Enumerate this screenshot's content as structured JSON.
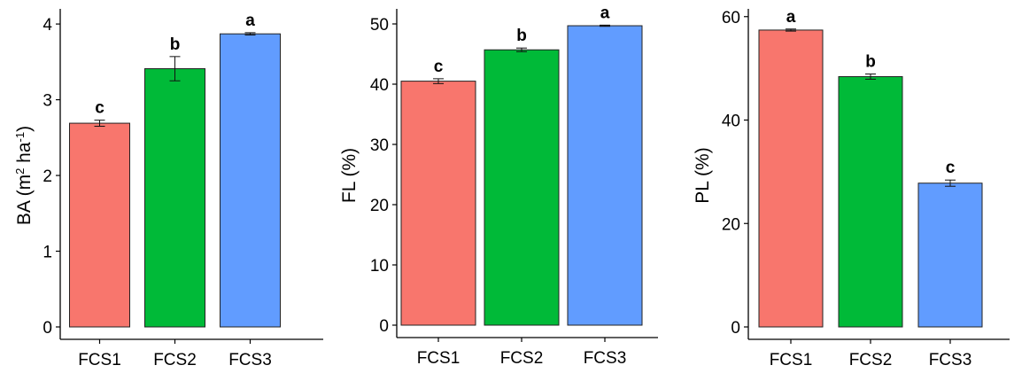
{
  "chart_data": [
    {
      "type": "bar",
      "categories": [
        "FCS1",
        "FCS2",
        "FCS3"
      ],
      "values": [
        2.69,
        3.41,
        3.87
      ],
      "errors": [
        0.04,
        0.16,
        0.015
      ],
      "sig_labels": [
        "c",
        "b",
        "a"
      ],
      "colors": [
        "#F8766D",
        "#00BA38",
        "#619CFF"
      ],
      "ylabel": "BA (m",
      "ylabel_sup1": "2",
      "ylabel_mid": " ha",
      "ylabel_sup2": "-1",
      "ylabel_end": ")",
      "ylim": [
        0,
        4.2
      ],
      "yticks": [
        0,
        1,
        2,
        3,
        4
      ],
      "grid": false
    },
    {
      "type": "bar",
      "categories": [
        "FCS1",
        "FCS2",
        "FCS3"
      ],
      "values": [
        40.5,
        45.7,
        49.7
      ],
      "errors": [
        0.4,
        0.3,
        0.1
      ],
      "sig_labels": [
        "c",
        "b",
        "a"
      ],
      "colors": [
        "#F8766D",
        "#00BA38",
        "#619CFF"
      ],
      "ylabel": "FL (%)",
      "ylim": [
        0,
        52.5
      ],
      "yticks": [
        0,
        10,
        20,
        30,
        40,
        50
      ],
      "grid": false
    },
    {
      "type": "bar",
      "categories": [
        "FCS1",
        "FCS2",
        "FCS3"
      ],
      "values": [
        57.4,
        48.4,
        27.8
      ],
      "errors": [
        0.2,
        0.5,
        0.6
      ],
      "sig_labels": [
        "a",
        "b",
        "c"
      ],
      "colors": [
        "#F8766D",
        "#00BA38",
        "#619CFF"
      ],
      "ylabel": "PL (%)",
      "ylim": [
        0,
        61.5
      ],
      "yticks": [
        0,
        20,
        40,
        60
      ],
      "grid": false
    }
  ]
}
